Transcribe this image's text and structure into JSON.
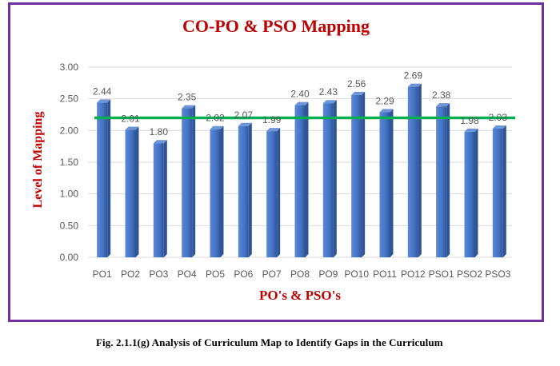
{
  "caption": "Fig. 2.1.1(g) Analysis of Curriculum Map to Identify Gaps in the Curriculum",
  "colors": {
    "frame": "#7030a0",
    "title": "#c00000",
    "bar": "#4472c4",
    "reference_line": "#00b050",
    "grid": "#d9d9d9",
    "tick_text": "#595959"
  },
  "chart_data": {
    "type": "bar",
    "title": "CO-PO & PSO Mapping",
    "xlabel": "PO's & PSO's",
    "ylabel": "Level of Mapping",
    "categories": [
      "PO1",
      "PO2",
      "PO3",
      "PO4",
      "PO5",
      "PO6",
      "PO7",
      "PO8",
      "PO9",
      "PO10",
      "PO11",
      "PO12",
      "PSO1",
      "PSO2",
      "PSO3"
    ],
    "values": [
      2.44,
      2.01,
      1.8,
      2.35,
      2.02,
      2.07,
      1.99,
      2.4,
      2.43,
      2.56,
      2.29,
      2.69,
      2.38,
      1.98,
      2.03
    ],
    "value_labels": [
      "2.44",
      "2.01",
      "1.80",
      "2.35",
      "2.02",
      "2.07",
      "1.99",
      "2.40",
      "2.43",
      "2.56",
      "2.29",
      "2.69",
      "2.38",
      "1.98",
      "2.03"
    ],
    "ylim": [
      0,
      3
    ],
    "yticks": [
      "0.00",
      "0.50",
      "1.00",
      "1.50",
      "2.00",
      "2.50",
      "3.00"
    ],
    "ytick_values": [
      0,
      0.5,
      1,
      1.5,
      2,
      2.5,
      3
    ],
    "reference_line": 2.2,
    "grid": true,
    "legend": false
  }
}
